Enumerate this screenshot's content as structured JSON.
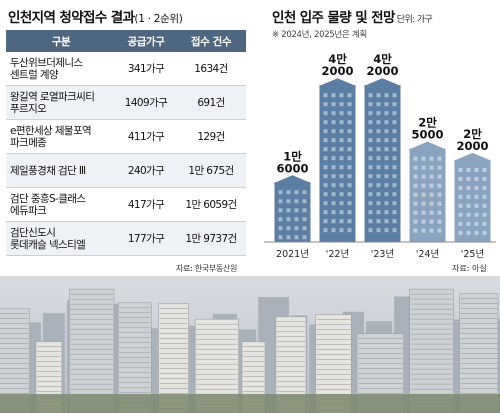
{
  "left": {
    "title_main": "인천지역 청약접수 결과",
    "title_sub": "(1 · 2순위)",
    "headers": [
      "구분",
      "공급가구",
      "접수 건수"
    ],
    "rows": [
      {
        "name_1": "두산위브더제니스",
        "name_2": "센트럴 계양",
        "supply": "341가구",
        "applications": "1634건"
      },
      {
        "name_1": "왕길역 로열파크씨티",
        "name_2": "푸르지오",
        "supply": "1409가구",
        "applications": "691건"
      },
      {
        "name_1": "e편한세상 제물포역",
        "name_2": "파크메종",
        "supply": "411가구",
        "applications": "129건"
      },
      {
        "name_1": "제일풍경채 검단 Ⅲ",
        "name_2": "",
        "supply": "240가구",
        "applications": "1만 675건"
      },
      {
        "name_1": "검단 중흥S-클래스",
        "name_2": "에듀파크",
        "supply": "417가구",
        "applications": "1만 6059건"
      },
      {
        "name_1": "검단신도시",
        "name_2": "롯데캐슬 넥스티엘",
        "supply": "177가구",
        "applications": "1만 9737건"
      }
    ],
    "source": "자료: 한국부동산원"
  },
  "right": {
    "title": "인천 입주 물량 및 전망",
    "unit": "단위: 가구",
    "note": "※ 2024년, 2025년은 계획",
    "source": "자료: 아실"
  },
  "chart_data": {
    "type": "bar",
    "categories": [
      "2021년",
      "'22년",
      "'23년",
      "'24년",
      "'25년"
    ],
    "values": [
      16000,
      42000,
      42000,
      25000,
      22000
    ],
    "labels_top": [
      "1만",
      "4만",
      "4만",
      "2만",
      "2만"
    ],
    "labels_bottom": [
      "6000",
      "2000",
      "2000",
      "5000",
      "2000"
    ],
    "colors": [
      "#5c7ea3",
      "#5c7ea3",
      "#5c7ea3",
      "#8aa4c0",
      "#8aa4c0"
    ],
    "ylim": [
      0,
      45000
    ],
    "grid": false
  }
}
